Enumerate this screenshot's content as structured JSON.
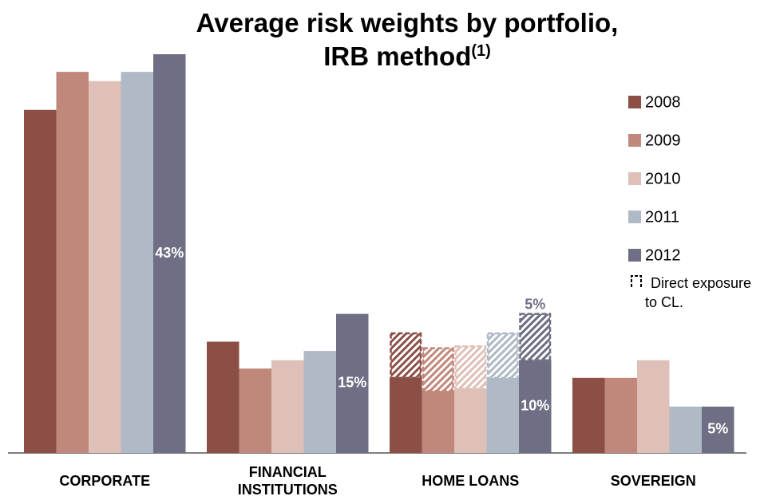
{
  "chart_data": {
    "type": "bar",
    "title": [
      "Average risk weights by portfolio,",
      "IRB method"
    ],
    "title_note": "(1)",
    "categories": [
      "CORPORATE",
      "FINANCIAL INSTITUTIONS",
      "HOME LOANS",
      "SOVEREIGN"
    ],
    "direct_exposure_name": [
      "Direct exposure",
      "to CL."
    ],
    "series": [
      {
        "name": "2008",
        "color": "#8b4f46",
        "values": [
          37.0,
          12.0,
          8.1,
          8.1
        ],
        "value_labels": [
          null,
          null,
          null,
          null
        ],
        "direct_exposure": [
          null,
          null,
          4.8,
          null
        ],
        "direct_exposure_labels": [
          null,
          null,
          null,
          null
        ]
      },
      {
        "name": "2009",
        "color": "#c0887a",
        "values": [
          41.1,
          9.1,
          6.7,
          8.1
        ],
        "value_labels": [
          null,
          null,
          null,
          null
        ],
        "direct_exposure": [
          null,
          null,
          4.6,
          null
        ],
        "direct_exposure_labels": [
          null,
          null,
          null,
          null
        ]
      },
      {
        "name": "2010",
        "color": "#dfc0b8",
        "values": [
          40.1,
          10.0,
          6.9,
          10.0
        ],
        "value_labels": [
          null,
          null,
          null,
          null
        ],
        "direct_exposure": [
          null,
          null,
          4.6,
          null
        ],
        "direct_exposure_labels": [
          null,
          null,
          null,
          null
        ]
      },
      {
        "name": "2011",
        "color": "#b0b9c6",
        "values": [
          41.1,
          11.0,
          8.1,
          5.0
        ],
        "value_labels": [
          null,
          null,
          null,
          null
        ],
        "direct_exposure": [
          null,
          null,
          4.8,
          null
        ],
        "direct_exposure_labels": [
          null,
          null,
          null,
          null
        ]
      },
      {
        "name": "2012",
        "color": "#6e6e84",
        "values": [
          43,
          15,
          10,
          5
        ],
        "value_labels": [
          "43%",
          "15%",
          "10%",
          "5%"
        ],
        "direct_exposure": [
          null,
          null,
          5,
          null
        ],
        "direct_exposure_labels": [
          null,
          null,
          "5%",
          null
        ]
      }
    ]
  }
}
